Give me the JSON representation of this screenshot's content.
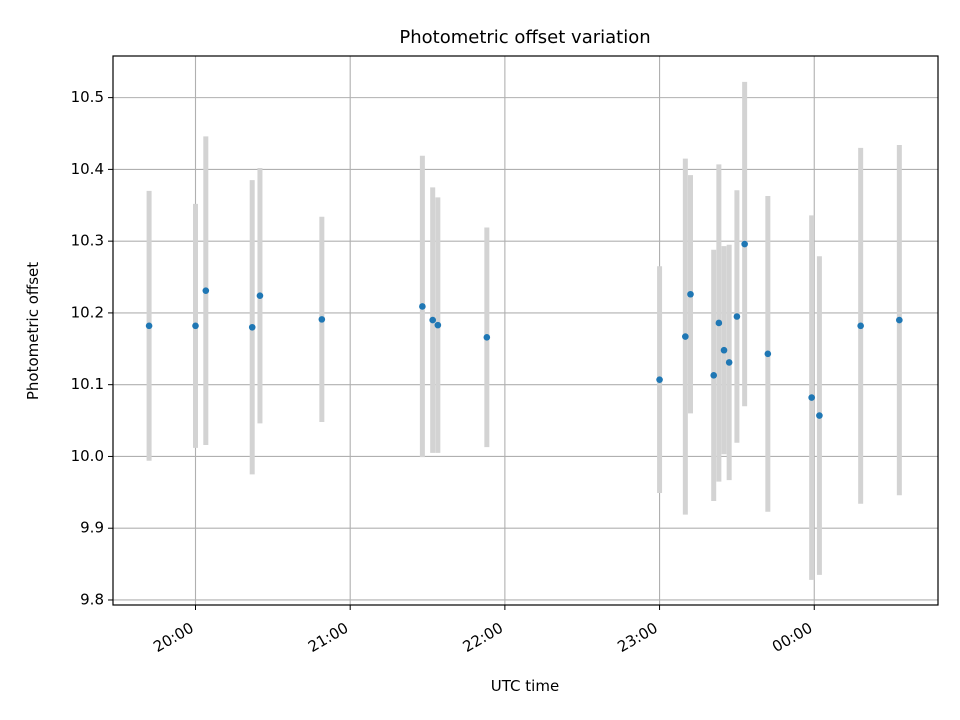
{
  "chart_data": {
    "type": "scatter",
    "title": "Photometric offset variation",
    "xlabel": "UTC time",
    "ylabel": "Photometric offset",
    "x_is_time": true,
    "xlim": [
      "19:28",
      "00:48"
    ],
    "ylim": [
      9.793,
      10.558
    ],
    "x_ticks": [
      "20:00",
      "21:00",
      "22:00",
      "23:00",
      "00:00"
    ],
    "y_ticks": [
      "9.8",
      "9.9",
      "10.0",
      "10.1",
      "10.2",
      "10.3",
      "10.4",
      "10.5"
    ],
    "grid": true,
    "colors": {
      "point": "#1f77b4",
      "errorbar": "#d3d3d3",
      "grid": "#b0b0b0"
    },
    "points": [
      {
        "x": "19:42",
        "y": 10.182,
        "yerr": 0.188
      },
      {
        "x": "20:00",
        "y": 10.182,
        "yerr": 0.17
      },
      {
        "x": "20:04",
        "y": 10.231,
        "yerr": 0.215
      },
      {
        "x": "20:22",
        "y": 10.18,
        "yerr": 0.205
      },
      {
        "x": "20:25",
        "y": 10.224,
        "yerr": 0.178
      },
      {
        "x": "20:49",
        "y": 10.191,
        "yerr": 0.143
      },
      {
        "x": "21:28",
        "y": 10.209,
        "yerr": 0.21
      },
      {
        "x": "21:32",
        "y": 10.19,
        "yerr": 0.185
      },
      {
        "x": "21:34",
        "y": 10.183,
        "yerr": 0.178
      },
      {
        "x": "21:53",
        "y": 10.166,
        "yerr": 0.153
      },
      {
        "x": "23:00",
        "y": 10.107,
        "yerr": 0.158
      },
      {
        "x": "23:10",
        "y": 10.167,
        "yerr": 0.248
      },
      {
        "x": "23:12",
        "y": 10.226,
        "yerr": 0.166
      },
      {
        "x": "23:21",
        "y": 10.113,
        "yerr": 0.175
      },
      {
        "x": "23:23",
        "y": 10.186,
        "yerr": 0.221
      },
      {
        "x": "23:25",
        "y": 10.148,
        "yerr": 0.145
      },
      {
        "x": "23:27",
        "y": 10.131,
        "yerr": 0.164
      },
      {
        "x": "23:30",
        "y": 10.195,
        "yerr": 0.176
      },
      {
        "x": "23:33",
        "y": 10.296,
        "yerr": 0.226
      },
      {
        "x": "23:42",
        "y": 10.143,
        "yerr": 0.22
      },
      {
        "x": "23:59",
        "y": 10.082,
        "yerr": 0.254
      },
      {
        "x": "00:02",
        "y": 10.057,
        "yerr": 0.222
      },
      {
        "x": "00:18",
        "y": 10.182,
        "yerr": 0.248
      },
      {
        "x": "00:33",
        "y": 10.19,
        "yerr": 0.244
      }
    ]
  }
}
